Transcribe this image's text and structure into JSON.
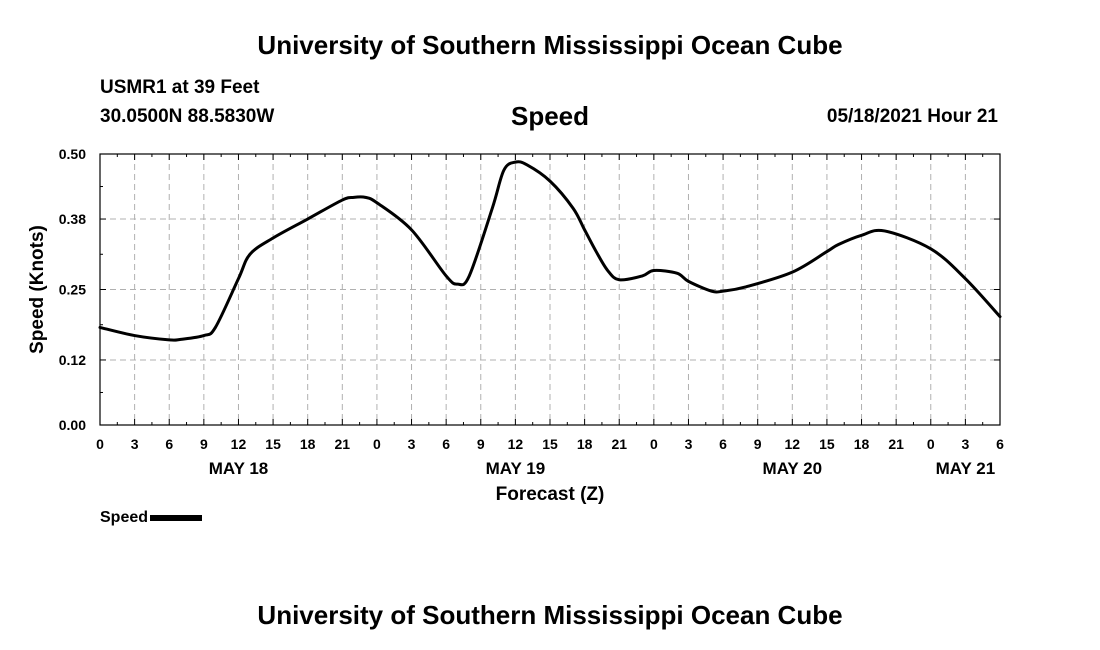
{
  "header": {
    "title": "University of Southern Mississippi Ocean Cube",
    "station": "USMR1 at 39 Feet",
    "coordinates": "30.0500N  88.5830W",
    "variable": "Speed",
    "datetime": "05/18/2021 Hour 21"
  },
  "footer": {
    "title": "University of Southern Mississippi Ocean Cube"
  },
  "legend": {
    "label": "Speed"
  },
  "chart_data": {
    "type": "line",
    "title": "Speed",
    "xlabel": "Forecast (Z)",
    "ylabel": "Speed (Knots)",
    "xlim": [
      0,
      78
    ],
    "ylim": [
      0,
      0.5
    ],
    "grid": true,
    "yticks": [
      "0.00",
      "0.12",
      "0.25",
      "0.38",
      "0.50"
    ],
    "xtick_labels": [
      "0",
      "3",
      "6",
      "9",
      "12",
      "15",
      "18",
      "21",
      "0",
      "3",
      "6",
      "9",
      "12",
      "15",
      "18",
      "21",
      "0",
      "3",
      "6",
      "9",
      "12",
      "15",
      "18",
      "21",
      "0",
      "3",
      "6"
    ],
    "day_labels": [
      {
        "hour": 12,
        "label": "MAY 18"
      },
      {
        "hour": 36,
        "label": "MAY 19"
      },
      {
        "hour": 60,
        "label": "MAY 20"
      },
      {
        "hour": 75,
        "label": "MAY 21"
      }
    ],
    "series": [
      {
        "name": "Speed",
        "color": "#000000",
        "x": [
          0,
          3,
          6,
          7,
          9,
          10,
          12,
          13,
          15,
          18,
          21,
          22,
          23,
          24,
          27,
          30,
          31,
          32,
          34,
          35,
          36,
          37,
          39,
          41,
          42,
          43,
          44,
          45,
          47,
          48,
          50,
          51,
          53,
          54,
          56,
          60,
          63,
          64,
          66,
          68,
          72,
          75,
          78
        ],
        "y": [
          0.18,
          0.165,
          0.157,
          0.158,
          0.165,
          0.18,
          0.27,
          0.315,
          0.345,
          0.38,
          0.415,
          0.42,
          0.42,
          0.41,
          0.36,
          0.275,
          0.26,
          0.275,
          0.4,
          0.47,
          0.485,
          0.48,
          0.45,
          0.4,
          0.36,
          0.32,
          0.285,
          0.268,
          0.275,
          0.285,
          0.28,
          0.265,
          0.247,
          0.247,
          0.255,
          0.282,
          0.32,
          0.333,
          0.35,
          0.358,
          0.325,
          0.27,
          0.2
        ]
      }
    ]
  }
}
